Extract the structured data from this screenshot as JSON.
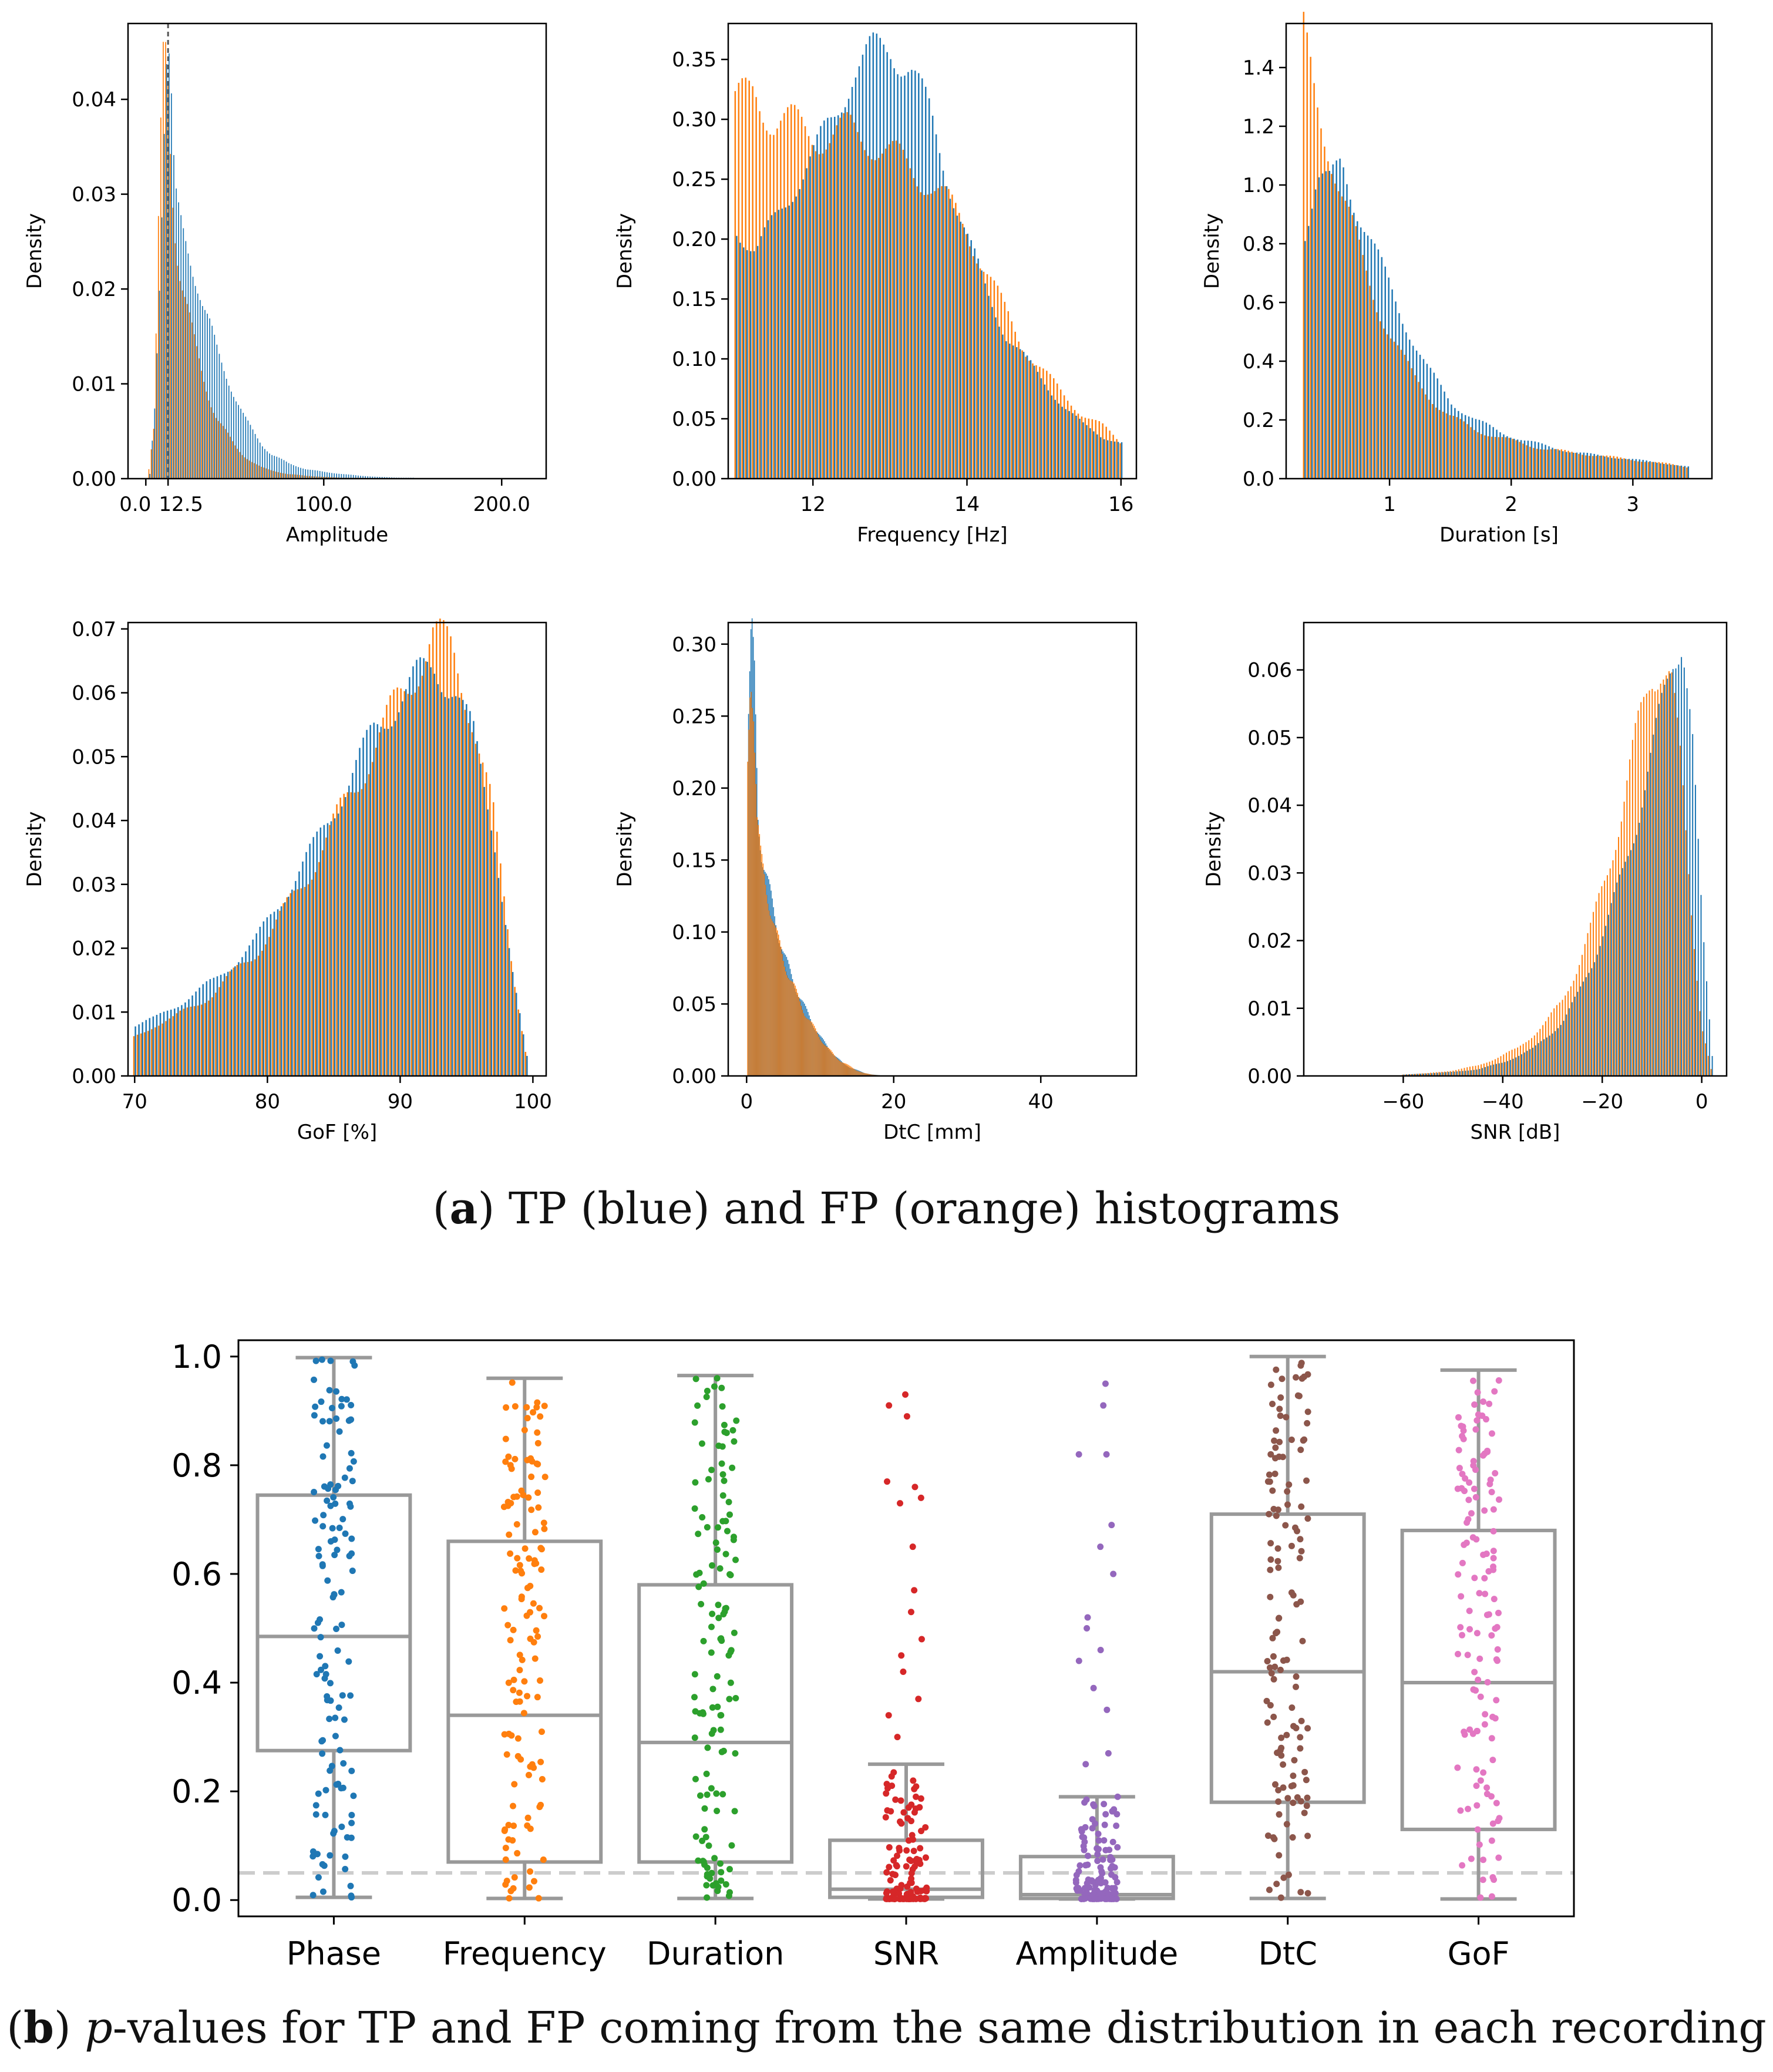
{
  "captions": {
    "a": {
      "label": "a",
      "text": "TP (blue) and FP (orange) histograms"
    },
    "b": {
      "label": "b",
      "pvar": "p",
      "text": "-values for TP and FP coming from the same distribution in each recording"
    }
  },
  "colors": {
    "tp": "#1f77b4",
    "fp": "#ff7f0e",
    "box": "#999999",
    "threshold": "#cccccc",
    "points": [
      "#1f77b4",
      "#ff7f0e",
      "#2ca02c",
      "#d62728",
      "#9467bd",
      "#8c564b",
      "#e377c2"
    ]
  },
  "chart_data": [
    {
      "type": "bar",
      "panel": "a-1",
      "xlabel": "Amplitude",
      "ylabel": "Density",
      "xlim": [
        -10,
        225
      ],
      "ylim": [
        0,
        0.048
      ],
      "xticks": [
        "0.0",
        "12.5",
        "100.0",
        "200.0"
      ],
      "xtick_values": [
        0,
        12.5,
        100,
        200
      ],
      "yticks": [
        "0.00",
        "0.01",
        "0.02",
        "0.03",
        "0.04"
      ],
      "ytick_values": [
        0,
        0.01,
        0.02,
        0.03,
        0.04
      ],
      "vline": 12.5,
      "series": [
        {
          "name": "TP",
          "x": [
            2,
            5,
            8,
            10,
            12,
            14,
            16,
            18,
            20,
            24,
            28,
            32,
            36,
            40,
            45,
            50,
            55,
            60,
            65,
            70,
            80,
            90,
            100,
            110,
            120,
            130,
            140,
            150
          ],
          "values": [
            0.0005,
            0.0085,
            0.024,
            0.037,
            0.047,
            0.04,
            0.03,
            0.028,
            0.0265,
            0.024,
            0.021,
            0.018,
            0.016,
            0.0135,
            0.011,
            0.0085,
            0.0065,
            0.005,
            0.0036,
            0.0026,
            0.0016,
            0.001,
            0.0007,
            0.0005,
            0.0003,
            0.0002,
            0.0001,
            0.0001
          ]
        },
        {
          "name": "FP",
          "x": [
            2,
            5,
            8,
            10,
            12,
            14,
            16,
            18,
            20,
            24,
            28,
            32,
            36,
            40,
            45,
            50,
            55,
            60,
            65,
            70,
            80,
            90,
            100,
            110,
            120,
            130,
            140,
            150
          ],
          "values": [
            0.001,
            0.0055,
            0.0315,
            0.0445,
            0.046,
            0.036,
            0.028,
            0.024,
            0.021,
            0.0175,
            0.014,
            0.011,
            0.0085,
            0.0065,
            0.005,
            0.0035,
            0.0025,
            0.0018,
            0.0012,
            0.0009,
            0.0005,
            0.0003,
            0.0002,
            0.0001,
            0.0001,
            0.0,
            0.0,
            0.0
          ]
        }
      ]
    },
    {
      "type": "bar",
      "panel": "a-2",
      "xlabel": "Frequency [Hz]",
      "ylabel": "Density",
      "xlim": [
        10.9,
        16.2
      ],
      "ylim": [
        0,
        0.38
      ],
      "xticks": [
        "12",
        "14",
        "16"
      ],
      "xtick_values": [
        12,
        14,
        16
      ],
      "yticks": [
        "0.00",
        "0.05",
        "0.10",
        "0.15",
        "0.20",
        "0.25",
        "0.30",
        "0.35"
      ],
      "ytick_values": [
        0,
        0.05,
        0.1,
        0.15,
        0.2,
        0.25,
        0.3,
        0.35
      ],
      "series": [
        {
          "name": "TP",
          "x": [
            11.0,
            11.25,
            11.5,
            11.75,
            12.0,
            12.25,
            12.5,
            12.75,
            13.0,
            13.25,
            13.5,
            13.75,
            14.0,
            14.25,
            14.5,
            14.75,
            15.0,
            15.25,
            15.5,
            15.75,
            16.0
          ],
          "values": [
            0.21,
            0.19,
            0.215,
            0.245,
            0.27,
            0.3,
            0.34,
            0.355,
            0.36,
            0.345,
            0.305,
            0.25,
            0.2,
            0.155,
            0.12,
            0.1,
            0.08,
            0.06,
            0.045,
            0.035,
            0.03
          ]
        },
        {
          "name": "FP",
          "x": [
            11.0,
            11.25,
            11.5,
            11.75,
            12.0,
            12.25,
            12.5,
            12.75,
            13.0,
            13.25,
            13.5,
            13.75,
            14.0,
            14.25,
            14.5,
            14.75,
            15.0,
            15.25,
            15.5,
            15.75,
            16.0
          ],
          "values": [
            0.31,
            0.325,
            0.3,
            0.295,
            0.29,
            0.285,
            0.29,
            0.285,
            0.27,
            0.26,
            0.25,
            0.23,
            0.21,
            0.175,
            0.14,
            0.11,
            0.09,
            0.07,
            0.055,
            0.045,
            0.03
          ]
        }
      ]
    },
    {
      "type": "bar",
      "panel": "a-3",
      "xlabel": "Duration [s]",
      "ylabel": "Density",
      "xlim": [
        0.15,
        3.65
      ],
      "ylim": [
        0,
        1.55
      ],
      "xticks": [
        "1",
        "2",
        "3"
      ],
      "xtick_values": [
        1,
        2,
        3
      ],
      "yticks": [
        "0.0",
        "0.2",
        "0.4",
        "0.6",
        "0.8",
        "1.0",
        "1.2",
        "1.4"
      ],
      "ytick_values": [
        0,
        0.2,
        0.4,
        0.6,
        0.8,
        1.0,
        1.2,
        1.4
      ],
      "series": [
        {
          "name": "TP",
          "x": [
            0.3,
            0.4,
            0.5,
            0.6,
            0.7,
            0.8,
            0.9,
            1.0,
            1.1,
            1.2,
            1.3,
            1.4,
            1.5,
            1.7,
            1.9,
            2.1,
            2.3,
            2.5,
            2.7,
            2.9,
            3.1,
            3.3,
            3.45
          ],
          "values": [
            0.85,
            1.02,
            1.0,
            1.08,
            0.95,
            0.85,
            0.75,
            0.65,
            0.55,
            0.46,
            0.38,
            0.32,
            0.26,
            0.2,
            0.16,
            0.13,
            0.11,
            0.09,
            0.08,
            0.07,
            0.06,
            0.05,
            0.04
          ]
        },
        {
          "name": "FP",
          "x": [
            0.3,
            0.4,
            0.5,
            0.6,
            0.7,
            0.8,
            0.9,
            1.0,
            1.1,
            1.2,
            1.3,
            1.4,
            1.5,
            1.7,
            1.9,
            2.1,
            2.3,
            2.5,
            2.7,
            2.9,
            3.1,
            3.3,
            3.45
          ],
          "values": [
            1.5,
            1.3,
            1.15,
            0.98,
            0.85,
            0.72,
            0.6,
            0.5,
            0.42,
            0.35,
            0.3,
            0.25,
            0.21,
            0.17,
            0.14,
            0.12,
            0.1,
            0.09,
            0.08,
            0.07,
            0.06,
            0.05,
            0.04
          ]
        }
      ]
    },
    {
      "type": "bar",
      "panel": "a-4",
      "xlabel": "GoF [%]",
      "ylabel": "Density",
      "xlim": [
        69.5,
        101
      ],
      "ylim": [
        0,
        0.071
      ],
      "xticks": [
        "70",
        "80",
        "90",
        "100"
      ],
      "xtick_values": [
        70,
        80,
        90,
        100
      ],
      "yticks": [
        "0.00",
        "0.01",
        "0.02",
        "0.03",
        "0.04",
        "0.05",
        "0.06",
        "0.07"
      ],
      "ytick_values": [
        0,
        0.01,
        0.02,
        0.03,
        0.04,
        0.05,
        0.06,
        0.07
      ],
      "series": [
        {
          "name": "TP",
          "x": [
            70,
            71.5,
            73,
            74.5,
            76,
            77.5,
            79,
            80.5,
            82,
            83.5,
            85,
            86.5,
            88,
            89.5,
            91,
            92.5,
            94,
            95.5,
            97,
            98.5,
            99.5
          ],
          "values": [
            0.008,
            0.009,
            0.011,
            0.013,
            0.015,
            0.018,
            0.021,
            0.026,
            0.031,
            0.036,
            0.042,
            0.048,
            0.054,
            0.058,
            0.062,
            0.064,
            0.061,
            0.053,
            0.038,
            0.015,
            0.003
          ]
        },
        {
          "name": "FP",
          "x": [
            70,
            71.5,
            73,
            74.5,
            76,
            77.5,
            79,
            80.5,
            82,
            83.5,
            85,
            86.5,
            88,
            89.5,
            91,
            92.5,
            94,
            95.5,
            97,
            98.5,
            99.5
          ],
          "values": [
            0.006,
            0.008,
            0.009,
            0.011,
            0.013,
            0.016,
            0.019,
            0.023,
            0.028,
            0.033,
            0.039,
            0.045,
            0.051,
            0.057,
            0.063,
            0.069,
            0.066,
            0.057,
            0.042,
            0.017,
            0.004
          ]
        }
      ]
    },
    {
      "type": "bar",
      "panel": "a-5",
      "xlabel": "DtC [mm]",
      "ylabel": "Density",
      "xlim": [
        -2.5,
        53
      ],
      "ylim": [
        0,
        0.315
      ],
      "xticks": [
        "0",
        "20",
        "40"
      ],
      "xtick_values": [
        0,
        20,
        40
      ],
      "yticks": [
        "0.00",
        "0.05",
        "0.10",
        "0.15",
        "0.20",
        "0.25",
        "0.30"
      ],
      "ytick_values": [
        0,
        0.05,
        0.1,
        0.15,
        0.2,
        0.25,
        0.3
      ],
      "series": [
        {
          "name": "TP",
          "x": [
            0.2,
            0.6,
            1.0,
            1.5,
            2.0,
            3.0,
            4.0,
            5.0,
            6.0,
            7.0,
            8.0,
            9.0,
            10.0,
            11.0,
            12.0,
            13.0,
            14.0,
            15.0,
            16.0,
            17.0,
            18.0
          ],
          "values": [
            0.25,
            0.31,
            0.28,
            0.18,
            0.155,
            0.13,
            0.105,
            0.085,
            0.07,
            0.057,
            0.046,
            0.036,
            0.027,
            0.02,
            0.014,
            0.009,
            0.006,
            0.004,
            0.002,
            0.001,
            0.0005
          ]
        },
        {
          "name": "FP",
          "x": [
            0.2,
            0.6,
            1.0,
            1.5,
            2.0,
            3.0,
            4.0,
            5.0,
            6.0,
            7.0,
            8.0,
            9.0,
            10.0,
            11.0,
            12.0,
            13.0,
            14.0,
            15.0,
            16.0,
            17.0,
            18.0
          ],
          "values": [
            0.22,
            0.29,
            0.26,
            0.175,
            0.15,
            0.125,
            0.1,
            0.082,
            0.068,
            0.055,
            0.044,
            0.035,
            0.027,
            0.02,
            0.014,
            0.01,
            0.007,
            0.004,
            0.002,
            0.001,
            0.0005
          ]
        }
      ]
    },
    {
      "type": "bar",
      "panel": "a-6",
      "xlabel": "SNR [dB]",
      "ylabel": "Density",
      "xlim": [
        -80,
        5
      ],
      "ylim": [
        0,
        0.067
      ],
      "xticks": [
        "−60",
        "−40",
        "−20",
        "0"
      ],
      "xtick_values": [
        -60,
        -40,
        -20,
        0
      ],
      "yticks": [
        "0.00",
        "0.01",
        "0.02",
        "0.03",
        "0.04",
        "0.05",
        "0.06"
      ],
      "ytick_values": [
        0,
        0.01,
        0.02,
        0.03,
        0.04,
        0.05,
        0.06
      ],
      "series": [
        {
          "name": "TP",
          "x": [
            -60,
            -55,
            -50,
            -45,
            -40,
            -37,
            -34,
            -31,
            -28,
            -25,
            -22,
            -19,
            -16,
            -13,
            -10,
            -8,
            -6,
            -4,
            -2,
            0,
            2
          ],
          "values": [
            0.0002,
            0.0004,
            0.0006,
            0.001,
            0.002,
            0.003,
            0.004,
            0.006,
            0.008,
            0.012,
            0.017,
            0.023,
            0.03,
            0.038,
            0.048,
            0.055,
            0.062,
            0.065,
            0.05,
            0.022,
            0.003
          ]
        },
        {
          "name": "FP",
          "x": [
            -60,
            -55,
            -50,
            -45,
            -40,
            -37,
            -34,
            -31,
            -28,
            -25,
            -22,
            -19,
            -16,
            -13,
            -10,
            -8,
            -6,
            -4,
            -2,
            0,
            2
          ],
          "values": [
            0.0002,
            0.0004,
            0.0008,
            0.0015,
            0.003,
            0.004,
            0.006,
            0.008,
            0.011,
            0.016,
            0.022,
            0.03,
            0.039,
            0.05,
            0.06,
            0.061,
            0.058,
            0.045,
            0.025,
            0.008,
            0.001
          ]
        }
      ]
    },
    {
      "type": "box",
      "panel": "b",
      "ylim": [
        -0.03,
        1.03
      ],
      "yticks": [
        "0.0",
        "0.2",
        "0.4",
        "0.6",
        "0.8",
        "1.0"
      ],
      "ytick_values": [
        0,
        0.2,
        0.4,
        0.6,
        0.8,
        1.0
      ],
      "threshold": 0.05,
      "categories": [
        "Phase",
        "Frequency",
        "Duration",
        "SNR",
        "Amplitude",
        "DtC",
        "GoF"
      ],
      "boxes": [
        {
          "min": 0.005,
          "q1": 0.275,
          "median": 0.485,
          "q3": 0.745,
          "max": 0.998
        },
        {
          "min": 0.003,
          "q1": 0.07,
          "median": 0.34,
          "q3": 0.66,
          "max": 0.96
        },
        {
          "min": 0.003,
          "q1": 0.07,
          "median": 0.29,
          "q3": 0.58,
          "max": 0.965
        },
        {
          "min": 0.002,
          "q1": 0.005,
          "median": 0.02,
          "q3": 0.11,
          "max": 0.25
        },
        {
          "min": 0.002,
          "q1": 0.003,
          "median": 0.01,
          "q3": 0.08,
          "max": 0.19
        },
        {
          "min": 0.003,
          "q1": 0.18,
          "median": 0.42,
          "q3": 0.71,
          "max": 1.0
        },
        {
          "min": 0.002,
          "q1": 0.13,
          "median": 0.4,
          "q3": 0.68,
          "max": 0.975
        }
      ],
      "outliers": [
        [],
        [],
        [],
        [
          0.3,
          0.34,
          0.37,
          0.42,
          0.45,
          0.48,
          0.53,
          0.57,
          0.65,
          0.73,
          0.74,
          0.76,
          0.77,
          0.89,
          0.91,
          0.93
        ],
        [
          0.25,
          0.27,
          0.35,
          0.39,
          0.44,
          0.46,
          0.5,
          0.52,
          0.6,
          0.65,
          0.69,
          0.82,
          0.82,
          0.91,
          0.95
        ],
        [],
        []
      ]
    }
  ]
}
